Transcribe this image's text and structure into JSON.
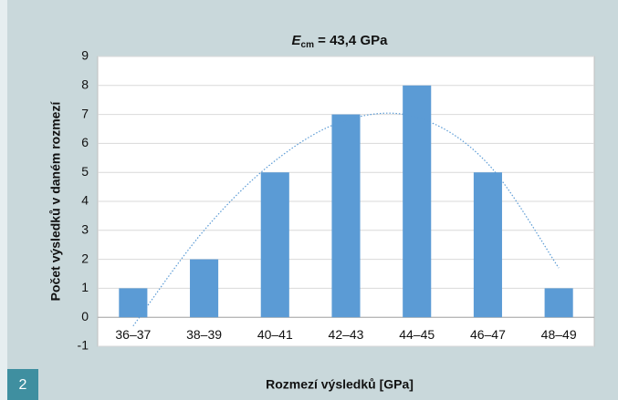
{
  "page_number": "2",
  "chart_data": {
    "type": "bar",
    "title_symbol": "E",
    "title_subscript": "cm",
    "title_text": " = 43,4 GPa",
    "x_label": "Rozmezí výsledků [GPa]",
    "y_label": "Počet výsledků v daném rozmezí",
    "categories": [
      "36–37",
      "38–39",
      "40–41",
      "42–43",
      "44–45",
      "46–47",
      "48–49"
    ],
    "values": [
      1,
      2,
      5,
      7,
      8,
      5,
      1
    ],
    "color": "#5b9bd5",
    "trendline": {
      "color": "#5b9bd5",
      "values": [
        -0.3,
        3.0,
        5.4,
        6.8,
        6.9,
        5.3,
        1.7
      ]
    },
    "ylim": [
      -1,
      9
    ],
    "yticks": [
      -1,
      0,
      1,
      2,
      3,
      4,
      5,
      6,
      7,
      8,
      9
    ],
    "grid": true
  }
}
